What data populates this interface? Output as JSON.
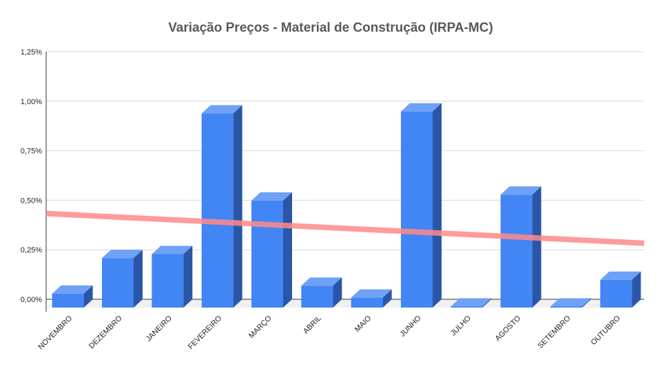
{
  "chart_data": {
    "type": "bar",
    "title": "Variação Preços - Material de Construção (IRPA-MC)",
    "xlabel": "",
    "ylabel": "",
    "categories": [
      "NOVEMBRO",
      "DEZEMBRO",
      "JANEIRO",
      "FEVEREIRO",
      "MARÇO",
      "ABRIL",
      "MAIO",
      "JUNHO",
      "JULHO",
      "AGOSTO",
      "SETEMBRO",
      "OUTUBRO"
    ],
    "series": [
      {
        "values": [
          0.07,
          0.25,
          0.27,
          0.98,
          0.54,
          0.11,
          0.05,
          0.99,
          -0.02,
          0.57,
          -0.02,
          0.14
        ],
        "color": "#4285f4"
      }
    ],
    "trendline": {
      "type": "linear",
      "color": "#ff8a8a",
      "start": 0.44,
      "end": 0.29
    },
    "ylim": [
      0,
      1.25
    ],
    "yticks": [
      "0,00%",
      "0,25%",
      "0,50%",
      "0,75%",
      "1,00%",
      "1,25%"
    ],
    "grid": true,
    "legend": "none",
    "style": "3d-column"
  }
}
